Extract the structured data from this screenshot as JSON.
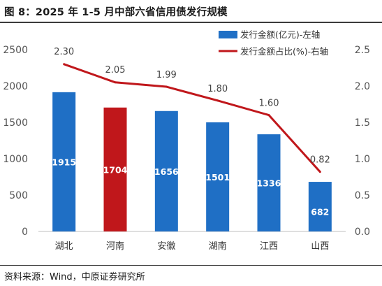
{
  "header": {
    "title": "图 8：2025 年 1-5 月中部六省信用债发行规模"
  },
  "footer": {
    "source": "资料来源：Wind，中原证券研究所"
  },
  "chart_data": {
    "type": "bar",
    "categories": [
      "湖北",
      "河南",
      "安徽",
      "湖南",
      "江西",
      "山西"
    ],
    "series": [
      {
        "name": "发行金额(亿元)-左轴",
        "type": "bar",
        "axis": "left",
        "values": [
          1915,
          1704,
          1656,
          1501,
          1336,
          682
        ],
        "labels": [
          "1915",
          "1704",
          "1656",
          "1501",
          "1336",
          "682"
        ],
        "color": "#1f6fc5",
        "highlight_index": 1,
        "highlight_color": "#c0171b"
      },
      {
        "name": "发行金额占比(%)-右轴",
        "type": "line",
        "axis": "right",
        "values": [
          2.3,
          2.05,
          1.99,
          1.8,
          1.6,
          0.82
        ],
        "labels": [
          "2.30",
          "2.05",
          "1.99",
          "1.80",
          "1.60",
          "0.82"
        ],
        "color": "#c0171b"
      }
    ],
    "left_axis": {
      "ylim": [
        0,
        2500
      ],
      "ticks": [
        "0",
        "500",
        "1000",
        "1500",
        "2000",
        "2500"
      ]
    },
    "right_axis": {
      "ylim": [
        0,
        2.5
      ],
      "ticks": [
        "0.0",
        "0.5",
        "1.0",
        "1.5",
        "2.0",
        "2.5"
      ]
    },
    "grid": false,
    "legend": "top-right"
  }
}
